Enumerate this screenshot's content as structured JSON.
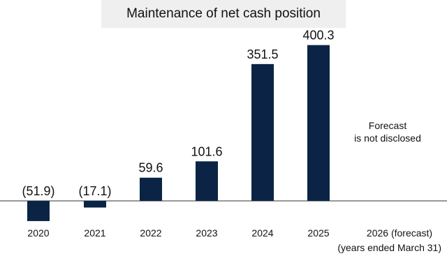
{
  "chart_data": {
    "type": "bar",
    "title": "Maintenance of net cash position",
    "categories": [
      "2020",
      "2021",
      "2022",
      "2023",
      "2024",
      "2025",
      "2026 (forecast)"
    ],
    "values": [
      -51.9,
      -17.1,
      59.6,
      101.6,
      351.5,
      400.3,
      null
    ],
    "value_labels": [
      "(51.9)",
      "(17.1)",
      "59.6",
      "101.6",
      "351.5",
      "400.3",
      ""
    ],
    "xlabel": "(years ended March 31)",
    "ylabel": "",
    "ylim": [
      -60,
      410
    ],
    "grid": false,
    "bar_color": "#0b2446",
    "annotations": [
      "Forecast",
      "is not disclosed"
    ]
  }
}
